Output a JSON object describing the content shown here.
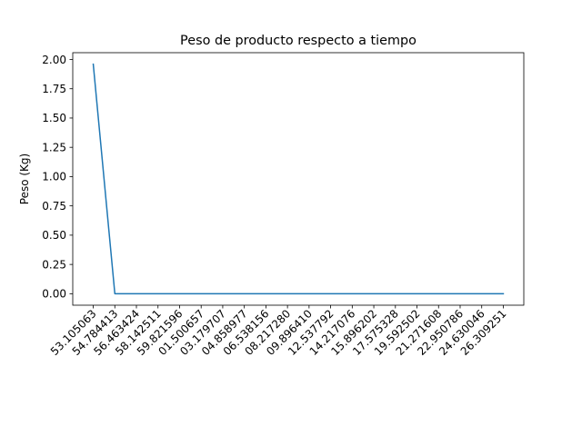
{
  "chart_data": {
    "type": "line",
    "title": "Peso de producto respecto a tiempo",
    "xlabel": "",
    "ylabel": "Peso (Kg)",
    "x": [
      "53.105063",
      "54.784413",
      "56.463424",
      "58.142511",
      "59.821596",
      "01.500657",
      "03.179707",
      "04.858977",
      "06.538156",
      "08.217280",
      "09.896410",
      "12.537792",
      "14.217076",
      "15.896202",
      "17.575328",
      "19.592502",
      "21.271608",
      "22.950786",
      "24.630046",
      "26.309251"
    ],
    "series": [
      {
        "values": [
          1.96,
          0,
          0,
          0,
          0,
          0,
          0,
          0,
          0,
          0,
          0,
          0,
          0,
          0,
          0,
          0,
          0,
          0,
          0,
          0
        ],
        "color": "#1f77b4"
      }
    ],
    "ylim": [
      -0.098,
      2.058
    ],
    "yticks": [
      0.0,
      0.25,
      0.5,
      0.75,
      1.0,
      1.25,
      1.5,
      1.75,
      2.0
    ],
    "ytick_labels": [
      "0.00",
      "0.25",
      "0.50",
      "0.75",
      "1.00",
      "1.25",
      "1.50",
      "1.75",
      "2.00"
    ],
    "grid": false,
    "legend": "none"
  }
}
